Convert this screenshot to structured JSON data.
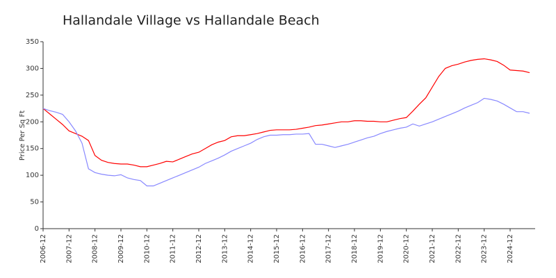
{
  "chart_data": {
    "type": "line",
    "title": "Hallandale Village vs Hallandale Beach",
    "y_label": "Price Per Sq Ft",
    "x": [
      "2006-12",
      "2007-03",
      "2007-06",
      "2007-09",
      "2007-12",
      "2008-03",
      "2008-06",
      "2008-09",
      "2008-12",
      "2009-03",
      "2009-06",
      "2009-09",
      "2009-12",
      "2010-03",
      "2010-06",
      "2010-09",
      "2010-12",
      "2011-03",
      "2011-06",
      "2011-09",
      "2011-12",
      "2012-03",
      "2012-06",
      "2012-09",
      "2012-12",
      "2013-03",
      "2013-06",
      "2013-09",
      "2013-12",
      "2014-03",
      "2014-06",
      "2014-09",
      "2014-12",
      "2015-03",
      "2015-06",
      "2015-09",
      "2015-12",
      "2016-03",
      "2016-06",
      "2016-09",
      "2016-12",
      "2017-03",
      "2017-06",
      "2017-09",
      "2017-12",
      "2018-03",
      "2018-06",
      "2018-09",
      "2018-12",
      "2019-03",
      "2019-06",
      "2019-09",
      "2019-12",
      "2020-03",
      "2020-06",
      "2020-09",
      "2020-12",
      "2021-03",
      "2021-06",
      "2021-09",
      "2021-12",
      "2022-03",
      "2022-06",
      "2022-09",
      "2022-12",
      "2023-03",
      "2023-06",
      "2023-09",
      "2023-12",
      "2024-03",
      "2024-06",
      "2024-09",
      "2024-12",
      "2025-03",
      "2025-06",
      "2025-09"
    ],
    "xtick_every": 4,
    "series": [
      {
        "color": "#ff0000",
        "values": [
          225,
          215,
          205,
          195,
          183,
          178,
          173,
          165,
          137,
          128,
          124,
          122,
          121,
          121,
          119,
          116,
          116,
          119,
          122,
          126,
          125,
          130,
          135,
          140,
          143,
          150,
          157,
          162,
          165,
          172,
          174,
          174,
          176,
          178,
          181,
          184,
          185,
          185,
          185,
          186,
          188,
          190,
          193,
          194,
          196,
          198,
          200,
          200,
          202,
          202,
          201,
          201,
          200,
          200,
          203,
          206,
          208,
          220,
          233,
          245,
          265,
          285,
          300,
          305,
          308,
          312,
          315,
          317,
          318,
          316,
          313,
          306,
          297,
          296,
          295,
          292
        ]
      },
      {
        "color": "#8888ff",
        "values": [
          225,
          221,
          218,
          214,
          200,
          183,
          160,
          112,
          105,
          102,
          100,
          99,
          101,
          95,
          92,
          90,
          80,
          80,
          85,
          90,
          95,
          100,
          105,
          110,
          115,
          122,
          127,
          132,
          138,
          145,
          150,
          155,
          160,
          167,
          172,
          175,
          175,
          176,
          176,
          177,
          177,
          178,
          158,
          158,
          155,
          152,
          155,
          158,
          162,
          166,
          170,
          173,
          178,
          182,
          185,
          188,
          190,
          196,
          192,
          196,
          200,
          205,
          210,
          215,
          220,
          226,
          231,
          236,
          244,
          242,
          239,
          233,
          226,
          219,
          219,
          216
        ]
      }
    ],
    "ylim": [
      0,
      350
    ],
    "yticks": [
      0,
      50,
      100,
      150,
      200,
      250,
      300,
      350
    ],
    "grid": false
  }
}
